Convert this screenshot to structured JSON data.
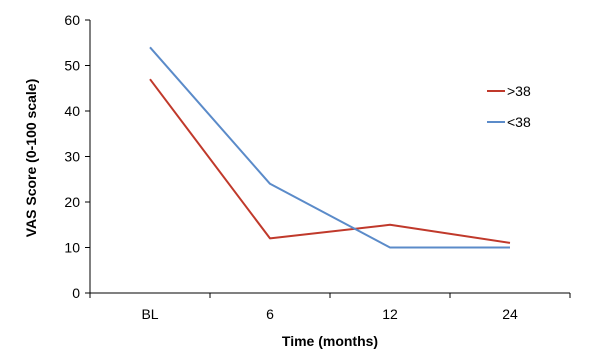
{
  "chart_data": {
    "type": "line",
    "categories": [
      "BL",
      "6",
      "12",
      "24"
    ],
    "series": [
      {
        "name": ">38",
        "values": [
          47,
          12,
          15,
          11
        ],
        "color": "#C0392B"
      },
      {
        "name": "<38",
        "values": [
          54,
          24,
          10,
          10
        ],
        "color": "#5B8BC9"
      }
    ],
    "xlabel": "Time (months)",
    "ylabel": "VAS Score (0-100 scale)",
    "ylim": [
      0,
      60
    ],
    "yticks": [
      0,
      10,
      20,
      30,
      40,
      50,
      60
    ],
    "grid": false,
    "legend_position": "right"
  }
}
